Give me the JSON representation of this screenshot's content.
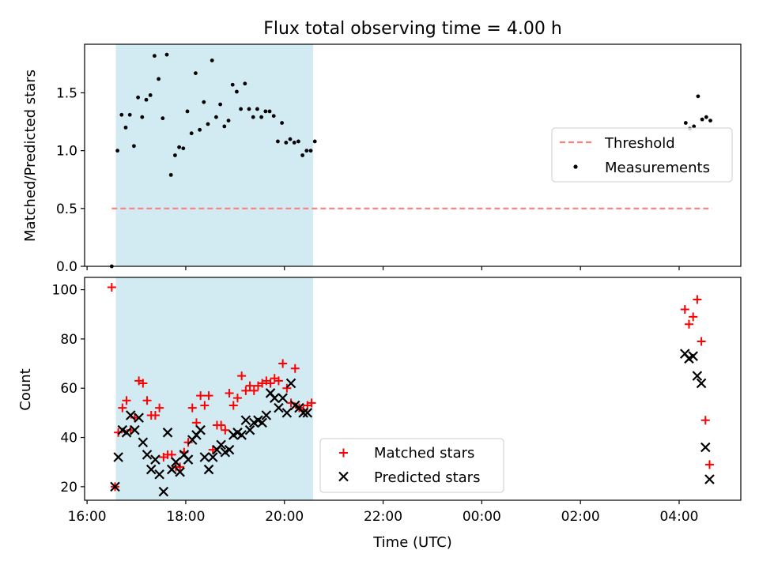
{
  "title": "Flux total observing time = 4.00 h",
  "colors": {
    "span_fill": "#add8e6",
    "threshold": "#ff7f7f",
    "matched": "#ff0000",
    "predicted": "#000000",
    "measurements": "#000000"
  },
  "chart_data": [
    {
      "type": "scatter",
      "xlabel": "",
      "ylabel": "Matched/Predicted stars",
      "xlim": [
        "15:57",
        "05:15"
      ],
      "ylim": [
        0,
        1.92
      ],
      "yticks": [
        0.0,
        0.5,
        1.0,
        1.5
      ],
      "ytick_labels": [
        "0.0",
        "0.5",
        "1.0",
        "1.5"
      ],
      "xticks": [
        "16:00",
        "18:00",
        "20:00",
        "22:00",
        "00:00",
        "02:00",
        "04:00"
      ],
      "xtick_labels_shown": false,
      "shaded_interval": [
        "16:35",
        "20:35"
      ],
      "legend": {
        "position": "center-right",
        "entries": [
          "Threshold",
          "Measurements"
        ]
      },
      "threshold": {
        "name": "Threshold",
        "y": 0.5,
        "x_range": [
          "16:30",
          "04:40"
        ],
        "style": "dashed"
      },
      "series": [
        {
          "name": "Measurements",
          "marker": "dot",
          "points": [
            [
              "16:30",
              0.0
            ],
            [
              "16:37",
              1.0
            ],
            [
              "16:42",
              1.31
            ],
            [
              "16:47",
              1.2
            ],
            [
              "16:52",
              1.31
            ],
            [
              "16:57",
              1.04
            ],
            [
              "17:02",
              1.46
            ],
            [
              "17:07",
              1.29
            ],
            [
              "17:12",
              1.44
            ],
            [
              "17:17",
              1.48
            ],
            [
              "17:22",
              1.82
            ],
            [
              "17:27",
              1.62
            ],
            [
              "17:32",
              1.28
            ],
            [
              "17:37",
              1.83
            ],
            [
              "17:42",
              0.79
            ],
            [
              "17:47",
              0.96
            ],
            [
              "17:52",
              1.03
            ],
            [
              "17:57",
              1.02
            ],
            [
              "18:02",
              1.34
            ],
            [
              "18:07",
              1.15
            ],
            [
              "18:12",
              1.67
            ],
            [
              "18:17",
              1.18
            ],
            [
              "18:22",
              1.42
            ],
            [
              "18:27",
              1.23
            ],
            [
              "18:32",
              1.78
            ],
            [
              "18:37",
              1.29
            ],
            [
              "18:42",
              1.4
            ],
            [
              "18:47",
              1.21
            ],
            [
              "18:52",
              1.26
            ],
            [
              "18:57",
              1.57
            ],
            [
              "19:02",
              1.51
            ],
            [
              "19:07",
              1.36
            ],
            [
              "19:12",
              1.58
            ],
            [
              "19:17",
              1.36
            ],
            [
              "19:22",
              1.29
            ],
            [
              "19:27",
              1.36
            ],
            [
              "19:32",
              1.29
            ],
            [
              "19:37",
              1.34
            ],
            [
              "19:42",
              1.34
            ],
            [
              "19:47",
              1.3
            ],
            [
              "19:52",
              1.08
            ],
            [
              "19:57",
              1.24
            ],
            [
              "20:02",
              1.07
            ],
            [
              "20:07",
              1.1
            ],
            [
              "20:12",
              1.07
            ],
            [
              "20:17",
              1.08
            ],
            [
              "20:22",
              0.96
            ],
            [
              "20:27",
              1.0
            ],
            [
              "20:32",
              1.0
            ],
            [
              "20:37",
              1.08
            ],
            [
              "04:08",
              1.24
            ],
            [
              "04:13",
              1.19
            ],
            [
              "04:18",
              1.21
            ],
            [
              "04:23",
              1.47
            ],
            [
              "04:28",
              1.27
            ],
            [
              "04:33",
              1.29
            ],
            [
              "04:38",
              1.26
            ]
          ]
        }
      ]
    },
    {
      "type": "scatter",
      "xlabel": "Time (UTC)",
      "ylabel": "Count",
      "xlim": [
        "15:57",
        "05:15"
      ],
      "ylim": [
        14.5,
        105
      ],
      "yticks": [
        20,
        40,
        60,
        80,
        100
      ],
      "ytick_labels": [
        "20",
        "40",
        "60",
        "80",
        "100"
      ],
      "xticks": [
        "16:00",
        "18:00",
        "20:00",
        "22:00",
        "00:00",
        "02:00",
        "04:00"
      ],
      "xtick_labels": [
        "16:00",
        "18:00",
        "20:00",
        "22:00",
        "00:00",
        "02:00",
        "04:00"
      ],
      "shaded_interval": [
        "16:35",
        "20:35"
      ],
      "legend": {
        "position": "lower-center",
        "entries": [
          "Matched stars",
          "Predicted stars"
        ]
      },
      "series": [
        {
          "name": "Matched stars",
          "marker": "plus",
          "points": [
            [
              "16:30",
              101
            ],
            [
              "16:34",
              20
            ],
            [
              "16:38",
              42
            ],
            [
              "16:43",
              52
            ],
            [
              "16:48",
              55
            ],
            [
              "16:53",
              43
            ],
            [
              "16:58",
              48
            ],
            [
              "17:03",
              63
            ],
            [
              "17:08",
              62
            ],
            [
              "17:13",
              55
            ],
            [
              "17:18",
              49
            ],
            [
              "17:23",
              49
            ],
            [
              "17:28",
              52
            ],
            [
              "17:33",
              32
            ],
            [
              "17:38",
              33
            ],
            [
              "17:43",
              33
            ],
            [
              "17:48",
              28
            ],
            [
              "17:53",
              28
            ],
            [
              "17:58",
              34
            ],
            [
              "18:03",
              38
            ],
            [
              "18:08",
              52
            ],
            [
              "18:13",
              46
            ],
            [
              "18:18",
              57
            ],
            [
              "18:23",
              53
            ],
            [
              "18:28",
              57
            ],
            [
              "18:33",
              35
            ],
            [
              "18:38",
              45
            ],
            [
              "18:43",
              45
            ],
            [
              "18:48",
              43
            ],
            [
              "18:53",
              58
            ],
            [
              "18:58",
              53
            ],
            [
              "19:03",
              56
            ],
            [
              "19:08",
              65
            ],
            [
              "19:13",
              59
            ],
            [
              "19:18",
              61
            ],
            [
              "19:23",
              59
            ],
            [
              "19:28",
              61
            ],
            [
              "19:33",
              62
            ],
            [
              "19:38",
              63
            ],
            [
              "19:43",
              62
            ],
            [
              "19:48",
              64
            ],
            [
              "19:53",
              63
            ],
            [
              "19:58",
              70
            ],
            [
              "20:03",
              60
            ],
            [
              "20:08",
              54
            ],
            [
              "20:13",
              68
            ],
            [
              "20:18",
              52
            ],
            [
              "20:23",
              51
            ],
            [
              "20:28",
              53
            ],
            [
              "20:33",
              54
            ],
            [
              "04:07",
              92
            ],
            [
              "04:12",
              86
            ],
            [
              "04:17",
              89
            ],
            [
              "04:22",
              96
            ],
            [
              "04:27",
              79
            ],
            [
              "04:32",
              47
            ],
            [
              "04:37",
              29
            ]
          ]
        },
        {
          "name": "Predicted stars",
          "marker": "x",
          "points": [
            [
              "16:34",
              20
            ],
            [
              "16:38",
              32
            ],
            [
              "16:43",
              43
            ],
            [
              "16:48",
              42
            ],
            [
              "16:53",
              49
            ],
            [
              "16:58",
              43
            ],
            [
              "17:03",
              48
            ],
            [
              "17:08",
              38
            ],
            [
              "17:13",
              33
            ],
            [
              "17:18",
              27
            ],
            [
              "17:23",
              31
            ],
            [
              "17:28",
              25
            ],
            [
              "17:33",
              18
            ],
            [
              "17:38",
              42
            ],
            [
              "17:43",
              27
            ],
            [
              "17:48",
              30
            ],
            [
              "17:53",
              26
            ],
            [
              "17:58",
              33
            ],
            [
              "18:03",
              31
            ],
            [
              "18:08",
              39
            ],
            [
              "18:13",
              41
            ],
            [
              "18:18",
              43
            ],
            [
              "18:23",
              32
            ],
            [
              "18:28",
              27
            ],
            [
              "18:33",
              32
            ],
            [
              "18:38",
              35
            ],
            [
              "18:43",
              37
            ],
            [
              "18:48",
              34
            ],
            [
              "18:53",
              35
            ],
            [
              "18:58",
              41
            ],
            [
              "19:03",
              42
            ],
            [
              "19:08",
              41
            ],
            [
              "19:13",
              47
            ],
            [
              "19:18",
              43
            ],
            [
              "19:23",
              46
            ],
            [
              "19:28",
              47
            ],
            [
              "19:33",
              46
            ],
            [
              "19:38",
              49
            ],
            [
              "19:43",
              58
            ],
            [
              "19:48",
              56
            ],
            [
              "19:53",
              52
            ],
            [
              "19:58",
              56
            ],
            [
              "20:03",
              50
            ],
            [
              "20:08",
              62
            ],
            [
              "20:13",
              53
            ],
            [
              "20:18",
              52
            ],
            [
              "20:23",
              50
            ],
            [
              "20:28",
              50
            ],
            [
              "04:07",
              74
            ],
            [
              "04:12",
              72
            ],
            [
              "04:17",
              73
            ],
            [
              "04:22",
              65
            ],
            [
              "04:27",
              62
            ],
            [
              "04:32",
              36
            ],
            [
              "04:37",
              23
            ]
          ]
        }
      ]
    }
  ]
}
